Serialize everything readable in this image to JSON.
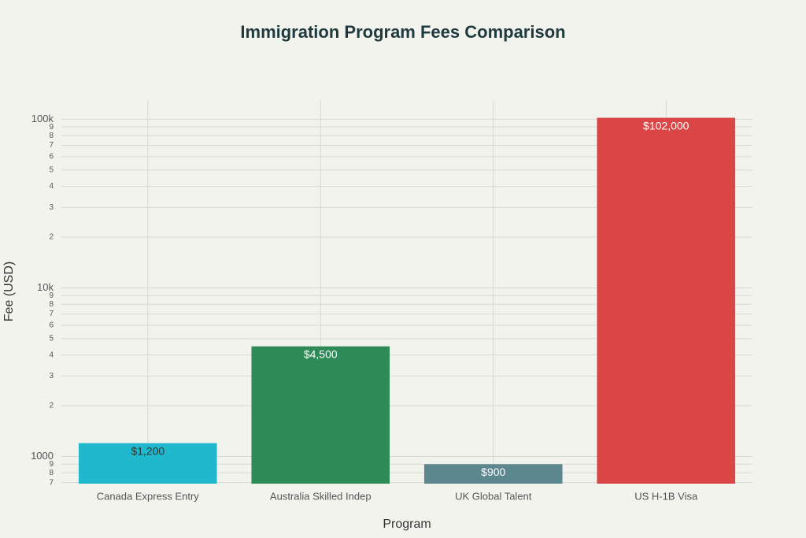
{
  "chart_data": {
    "type": "bar",
    "title": "Immigration Program Fees Comparison",
    "x_label": "Program",
    "y_label": "Fee (USD)",
    "categories": [
      "Canada Express Entry",
      "Australia Skilled Indep",
      "UK Global Talent",
      "US H-1B Visa"
    ],
    "values": [
      1200,
      4500,
      900,
      102000
    ],
    "value_labels": [
      "$1,200",
      "$4,500",
      "$900",
      "$102,000"
    ],
    "colors": [
      "#1fb8cd",
      "#2e8b57",
      "#5d878f",
      "#db4545"
    ],
    "log_scale": true,
    "grid": true,
    "ylim": [
      690,
      130000
    ],
    "yticks": [
      {
        "value": 700,
        "label": "7"
      },
      {
        "value": 800,
        "label": "8"
      },
      {
        "value": 900,
        "label": "9"
      },
      1000,
      {
        "value": 2000,
        "label": "2"
      },
      {
        "value": 3000,
        "label": "3"
      },
      {
        "value": 4000,
        "label": "4"
      },
      {
        "value": 5000,
        "label": "5"
      },
      {
        "value": 6000,
        "label": "6"
      },
      {
        "value": 7000,
        "label": "7"
      },
      {
        "value": 8000,
        "label": "8"
      },
      {
        "value": 9000,
        "label": "9"
      },
      {
        "value": 10000,
        "label": "10k"
      },
      {
        "value": 20000,
        "label": "2"
      },
      {
        "value": 30000,
        "label": "3"
      },
      {
        "value": 40000,
        "label": "4"
      },
      {
        "value": 50000,
        "label": "5"
      },
      {
        "value": 60000,
        "label": "6"
      },
      {
        "value": 70000,
        "label": "7"
      },
      {
        "value": 80000,
        "label": "8"
      },
      {
        "value": 90000,
        "label": "9"
      },
      {
        "value": 100000,
        "label": "100k"
      }
    ]
  }
}
